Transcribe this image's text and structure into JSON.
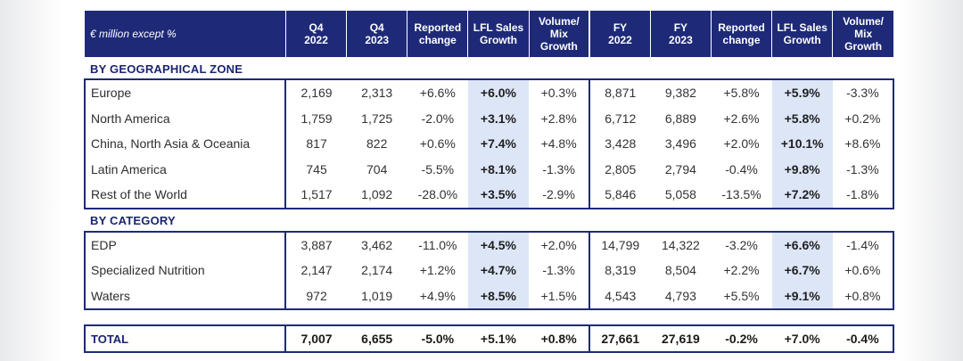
{
  "header": {
    "label": "€ million except %",
    "columns": [
      [
        "Q4",
        "2022"
      ],
      [
        "Q4",
        "2023"
      ],
      [
        "Reported",
        "change"
      ],
      [
        "LFL Sales",
        "Growth"
      ],
      [
        "Volume/",
        "Mix",
        "Growth"
      ],
      [
        "FY",
        "2022"
      ],
      [
        "FY",
        "2023"
      ],
      [
        "Reported",
        "change"
      ],
      [
        "LFL Sales",
        "Growth"
      ],
      [
        "Volume/",
        "Mix",
        "Growth"
      ]
    ]
  },
  "sections": [
    {
      "title": "BY GEOGRAPHICAL ZONE",
      "rows": [
        {
          "label": "Europe",
          "values": [
            "2,169",
            "2,313",
            "+6.6%",
            "+6.0%",
            "+0.3%",
            "8,871",
            "9,382",
            "+5.8%",
            "+5.9%",
            "-3.3%"
          ]
        },
        {
          "label": "North America",
          "values": [
            "1,759",
            "1,725",
            "-2.0%",
            "+3.1%",
            "+2.8%",
            "6,712",
            "6,889",
            "+2.6%",
            "+5.8%",
            "+0.2%"
          ]
        },
        {
          "label": "China, North Asia & Oceania",
          "values": [
            "817",
            "822",
            "+0.6%",
            "+7.4%",
            "+4.8%",
            "3,428",
            "3,496",
            "+2.0%",
            "+10.1%",
            "+8.6%"
          ]
        },
        {
          "label": "Latin America",
          "values": [
            "745",
            "704",
            "-5.5%",
            "+8.1%",
            "-1.3%",
            "2,805",
            "2,794",
            "-0.4%",
            "+9.8%",
            "-1.3%"
          ]
        },
        {
          "label": "Rest of the World",
          "values": [
            "1,517",
            "1,092",
            "-28.0%",
            "+3.5%",
            "-2.9%",
            "5,846",
            "5,058",
            "-13.5%",
            "+7.2%",
            "-1.8%"
          ]
        }
      ]
    },
    {
      "title": "BY CATEGORY",
      "rows": [
        {
          "label": "EDP",
          "values": [
            "3,887",
            "3,462",
            "-11.0%",
            "+4.5%",
            "+2.0%",
            "14,799",
            "14,322",
            "-3.2%",
            "+6.6%",
            "-1.4%"
          ]
        },
        {
          "label": "Specialized Nutrition",
          "values": [
            "2,147",
            "2,174",
            "+1.2%",
            "+4.7%",
            "-1.3%",
            "8,319",
            "8,504",
            "+2.2%",
            "+6.7%",
            "+0.6%"
          ]
        },
        {
          "label": "Waters",
          "values": [
            "972",
            "1,019",
            "+4.9%",
            "+8.5%",
            "+1.5%",
            "4,543",
            "4,793",
            "+5.5%",
            "+9.1%",
            "+0.8%"
          ]
        }
      ]
    }
  ],
  "total": {
    "label": "TOTAL",
    "values": [
      "7,007",
      "6,655",
      "-5.0%",
      "+5.1%",
      "+0.8%",
      "27,661",
      "27,619",
      "-0.2%",
      "+7.0%",
      "-0.4%"
    ]
  },
  "colors": {
    "header_bg": "#1e2a78",
    "lfl_highlight": "#dde6f7",
    "section_text": "#1b2470"
  }
}
